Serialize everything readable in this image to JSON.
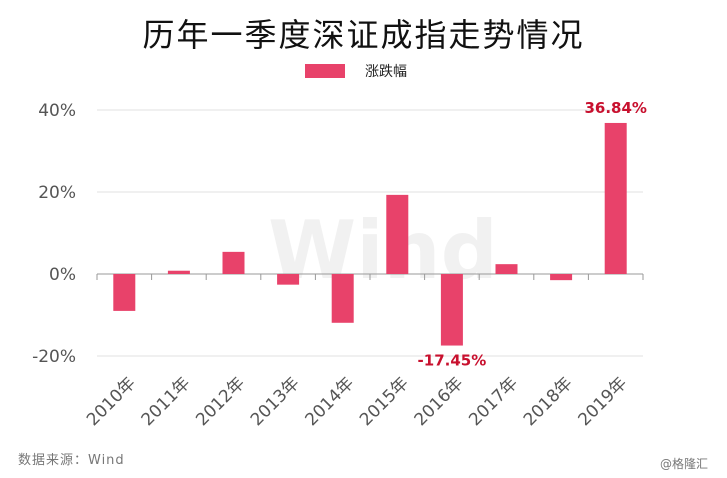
{
  "watermark": "Wind",
  "source": "数据来源：Wind",
  "credit": "@格隆汇",
  "colors": {
    "bar": "#e8426a",
    "label": "#c8102e",
    "axis": "#999999",
    "grid": "#e0e0e0",
    "tick_text": "#555555"
  },
  "chart_data": {
    "type": "bar",
    "title": "历年一季度深证成指走势情况",
    "categories": [
      "2010年",
      "2011年",
      "2012年",
      "2013年",
      "2014年",
      "2015年",
      "2016年",
      "2017年",
      "2018年",
      "2019年"
    ],
    "series": [
      {
        "name": "涨跌幅",
        "values": [
          -9,
          0.8,
          5.4,
          -2.6,
          -11.9,
          19.3,
          -17.45,
          2.4,
          -1.5,
          36.84
        ]
      }
    ],
    "data_labels": [
      {
        "category": "2016年",
        "text": "-17.45%"
      },
      {
        "category": "2019年",
        "text": "36.84%"
      }
    ],
    "ylim": [
      -20,
      40
    ],
    "yticks": [
      -20,
      0,
      20,
      40
    ],
    "ytick_labels": [
      "-20%",
      "0%",
      "20%",
      "40%"
    ],
    "grid": true,
    "legend": "top-center"
  }
}
